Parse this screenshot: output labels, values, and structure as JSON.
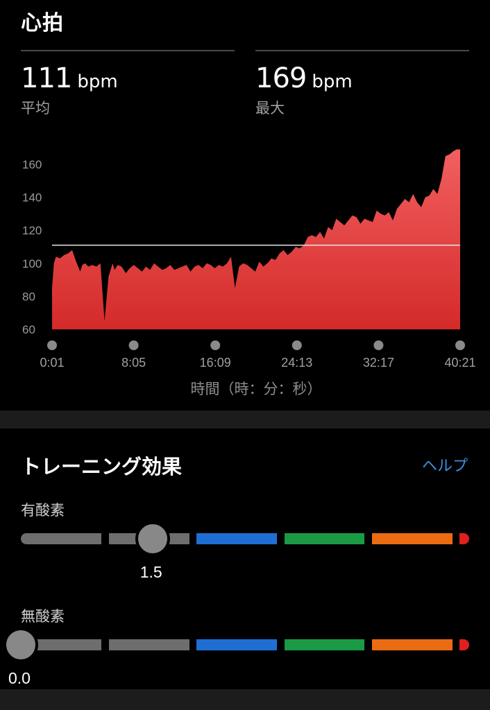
{
  "heart_rate": {
    "title": "心拍",
    "avg": {
      "value": "111",
      "unit": "bpm",
      "label": "平均"
    },
    "max": {
      "value": "169",
      "unit": "bpm",
      "label": "最大"
    }
  },
  "chart_data": {
    "type": "area",
    "x_axis_title": "時間（時：分：秒）",
    "x_ticks": [
      "0:01",
      "8:05",
      "16:09",
      "24:13",
      "32:17",
      "40:21"
    ],
    "y_ticks": [
      60,
      80,
      100,
      120,
      140,
      160
    ],
    "ylim": [
      60,
      170
    ],
    "xlim_minutes": [
      0.0167,
      40.35
    ],
    "average_line": 111,
    "fill_color_top": "#f25f5f",
    "fill_color_bottom": "#d42a2a",
    "average_line_color": "#e8e8e8",
    "series": [
      {
        "x_minutes": [
          0.02,
          0.2,
          0.4,
          0.8,
          1.2,
          1.6,
          2.0,
          2.4,
          2.8,
          3.0,
          3.3,
          3.6,
          4.0,
          4.4,
          4.8,
          5.2,
          5.6,
          5.9,
          6.0,
          6.2,
          6.5,
          6.9,
          7.3,
          7.7,
          8.1,
          8.5,
          8.9,
          9.3,
          9.7,
          10.1,
          10.5,
          10.9,
          11.3,
          11.7,
          12.1,
          12.5,
          12.9,
          13.3,
          13.7,
          14.1,
          14.5,
          14.9,
          15.3,
          15.7,
          16.1,
          16.5,
          16.9,
          17.3,
          17.7,
          18.1,
          18.5,
          18.9,
          19.3,
          19.7,
          20.1,
          20.5,
          20.9,
          21.3,
          21.7,
          22.1,
          22.5,
          22.9,
          23.3,
          23.7,
          24.1,
          24.5,
          24.9,
          25.3,
          25.7,
          26.1,
          26.5,
          26.9,
          27.3,
          27.7,
          28.1,
          28.5,
          28.9,
          29.3,
          29.7,
          30.1,
          30.5,
          30.9,
          31.3,
          31.7,
          32.1,
          32.5,
          32.9,
          33.3,
          33.7,
          34.1,
          34.5,
          34.9,
          35.3,
          35.7,
          36.1,
          36.5,
          36.9,
          37.3,
          37.7,
          38.1,
          38.5,
          38.9,
          39.3,
          39.7,
          40.0,
          40.35
        ],
        "values": [
          85,
          100,
          104,
          103,
          105,
          106,
          108,
          101,
          95,
          99,
          100,
          98,
          99,
          98,
          100,
          65,
          92,
          98,
          100,
          96,
          99,
          98,
          94,
          97,
          99,
          97,
          95,
          98,
          96,
          100,
          98,
          96,
          97,
          99,
          96,
          97,
          98,
          99,
          95,
          98,
          99,
          97,
          100,
          99,
          97,
          99,
          98,
          100,
          104,
          85,
          98,
          100,
          99,
          97,
          95,
          101,
          98,
          100,
          103,
          102,
          106,
          108,
          105,
          107,
          110,
          109,
          111,
          116,
          117,
          116,
          119,
          115,
          122,
          120,
          127,
          125,
          123,
          126,
          129,
          128,
          124,
          127,
          126,
          125,
          132,
          130,
          129,
          131,
          126,
          133,
          136,
          139,
          137,
          142,
          137,
          134,
          140,
          141,
          145,
          142,
          151,
          165,
          166,
          168,
          169,
          169
        ]
      }
    ]
  },
  "training_effect": {
    "title": "トレーニング効果",
    "help_label": "ヘルプ",
    "aerobic": {
      "label": "有酸素",
      "value": "1.5",
      "value_num": 1.5
    },
    "anaerobic": {
      "label": "無酸素",
      "value": "0.0",
      "value_num": 0.0
    },
    "scale_colors": [
      "#6e6e6e",
      "#6e6e6e",
      "#1f6ed4",
      "#1b9a45",
      "#ea6b12",
      "#e02020"
    ]
  }
}
